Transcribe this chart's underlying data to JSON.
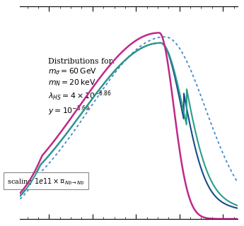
{
  "annotation_lines": [
    "Distributions for:",
    "$m_{\\sigma}=60\\,\\mathrm{GeV}$",
    "$m_N=20\\,\\mathrm{keV}$",
    "$\\lambda_{HS}=4 \\times 10^{-6.86}$",
    "$y=10^{-8.69}$"
  ],
  "legend_text": "scaling $1e11 \\times \\mathcal{M}_{Nb\\to Nb}$",
  "colors": {
    "magenta": "#c0288a",
    "teal": "#2a9d8a",
    "blue": "#1a4a8a",
    "dotted_blue": "#4488cc"
  },
  "background": "#ffffff",
  "xlim": [
    -0.5,
    1.0
  ],
  "ylim": [
    0.0,
    1.05
  ]
}
